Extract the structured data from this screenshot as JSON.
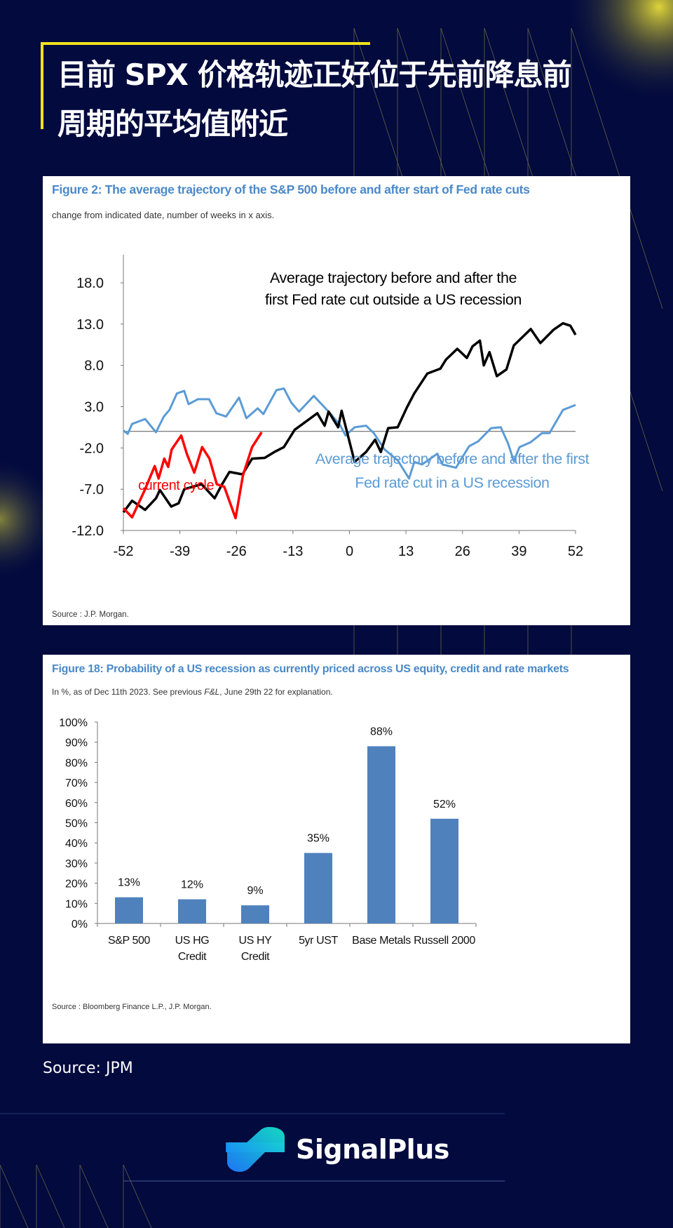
{
  "page": {
    "title_line1": "目前 SPX 价格轨迹正好位于先前降息前",
    "title_line2": "周期的平均值附近",
    "source": "Source: JPM",
    "brand": "SignalPlus",
    "colors": {
      "background": "#020a3e",
      "accent_yellow": "#f2e21c",
      "figure_title_blue": "#4a89c8"
    },
    "icons": [
      "signalplus-logo-icon"
    ]
  },
  "chart_data": [
    {
      "type": "line",
      "title": "Figure 2: The average trajectory of the S&P 500 before and after start of Fed rate cuts",
      "subtitle": "change from indicated date, number of weeks in x axis.",
      "source": "Source : J.P. Morgan.",
      "xlim": [
        -52,
        52
      ],
      "ylim": [
        -12,
        18
      ],
      "xticks": [
        "-52",
        "-39",
        "-26",
        "-13",
        "0",
        "13",
        "26",
        "39",
        "52"
      ],
      "xtick_values": [
        -52,
        -39,
        -26,
        -13,
        0,
        13,
        26,
        39,
        52
      ],
      "yticks": [
        "18.0",
        "13.0",
        "8.0",
        "3.0",
        "-2.0",
        "-7.0",
        "-12.0"
      ],
      "ytick_values": [
        18,
        13,
        8,
        3,
        -2,
        -7,
        -12
      ],
      "grid": false,
      "zero_line": true,
      "series": [
        {
          "name": "Average trajectory before and after the first Fed rate cut outside a US recession",
          "label_lines": [
            "Average trajectory before and after the",
            "first Fed rate cut outside a US recession"
          ],
          "color": "#000000",
          "points": [
            [
              -52,
              -9.8
            ],
            [
              -50,
              -8.4
            ],
            [
              -47,
              -9.5
            ],
            [
              -44.5,
              -8.1
            ],
            [
              -43.6,
              -7.1
            ],
            [
              -41,
              -9.1
            ],
            [
              -39.3,
              -8.7
            ],
            [
              -38,
              -7
            ],
            [
              -36,
              -6.7
            ],
            [
              -34,
              -6.4
            ],
            [
              -31,
              -8.1
            ],
            [
              -29.3,
              -6.4
            ],
            [
              -27.6,
              -4.9
            ],
            [
              -24.6,
              -5.2
            ],
            [
              -22.4,
              -3.3
            ],
            [
              -19.5,
              -3.2
            ],
            [
              -17.3,
              -2.5
            ],
            [
              -15.1,
              -1.9
            ],
            [
              -12.6,
              0.2
            ],
            [
              -10,
              1.2
            ],
            [
              -7.4,
              2.2
            ],
            [
              -5.7,
              0.7
            ],
            [
              -4.8,
              2.4
            ],
            [
              -2.6,
              0.5
            ],
            [
              -1.8,
              2.5
            ],
            [
              1.2,
              -3.7
            ],
            [
              3.8,
              -2.5
            ],
            [
              5.9,
              -1.0
            ],
            [
              7.2,
              -2.5
            ],
            [
              8.9,
              0.4
            ],
            [
              11.1,
              0.5
            ],
            [
              13.2,
              2.9
            ],
            [
              14.9,
              4.6
            ],
            [
              17.9,
              7.0
            ],
            [
              20.9,
              7.6
            ],
            [
              22.2,
              8.7
            ],
            [
              24.8,
              10.0
            ],
            [
              27,
              8.9
            ],
            [
              28.3,
              10.3
            ],
            [
              30,
              11
            ],
            [
              30.9,
              8
            ],
            [
              32.2,
              9.6
            ],
            [
              33.9,
              6.7
            ],
            [
              36.1,
              7.5
            ],
            [
              37.8,
              10.4
            ],
            [
              41.7,
              12.4
            ],
            [
              43.9,
              10.7
            ],
            [
              46.9,
              12.3
            ],
            [
              49.1,
              13.1
            ],
            [
              50.8,
              12.8
            ],
            [
              52,
              11.7
            ]
          ]
        },
        {
          "name": "Average trajectory before and after the first Fed rate cut in a US recession",
          "label_lines": [
            "Average trajectory before and after the first",
            "Fed rate cut in a US recession"
          ],
          "color": "#5b9bd5",
          "points": [
            [
              -52,
              0.1
            ],
            [
              -51,
              -0.3
            ],
            [
              -50,
              0.9
            ],
            [
              -47,
              1.5
            ],
            [
              -44.5,
              -0.1
            ],
            [
              -42.7,
              1.8
            ],
            [
              -41.4,
              2.6
            ],
            [
              -39.7,
              4.6
            ],
            [
              -38,
              4.9
            ],
            [
              -37,
              3.3
            ],
            [
              -34.9,
              3.9
            ],
            [
              -32.3,
              3.9
            ],
            [
              -30.6,
              2.2
            ],
            [
              -28.4,
              1.8
            ],
            [
              -25.4,
              4.1
            ],
            [
              -23.7,
              1.6
            ],
            [
              -21.1,
              2.8
            ],
            [
              -19.8,
              2.1
            ],
            [
              -16.8,
              5.0
            ],
            [
              -15.1,
              5.2
            ],
            [
              -13.4,
              3.5
            ],
            [
              -11.6,
              2.4
            ],
            [
              -8.2,
              4.3
            ],
            [
              -4.8,
              2.4
            ],
            [
              -2.2,
              0.8
            ],
            [
              -0.9,
              -0.5
            ],
            [
              1.2,
              0.5
            ],
            [
              3.8,
              0.7
            ],
            [
              5.6,
              -0.2
            ],
            [
              8.1,
              -2.2
            ],
            [
              11.1,
              -3.5
            ],
            [
              13.7,
              -5.7
            ],
            [
              14.9,
              -3.7
            ],
            [
              16.7,
              -4.0
            ],
            [
              20.2,
              -2.7
            ],
            [
              21.4,
              -4.0
            ],
            [
              24.5,
              -4.4
            ],
            [
              27.5,
              -1.8
            ],
            [
              29.6,
              -1.2
            ],
            [
              32.6,
              0.4
            ],
            [
              34.8,
              0.5
            ],
            [
              36.5,
              -1.5
            ],
            [
              37.8,
              -3.6
            ],
            [
              39.1,
              -1.9
            ],
            [
              41.7,
              -1.3
            ],
            [
              44.3,
              -0.2
            ],
            [
              46,
              -0.2
            ],
            [
              49.1,
              2.6
            ],
            [
              52,
              3.2
            ]
          ]
        },
        {
          "name": "current cycle",
          "label_lines": [
            "current cycle"
          ],
          "color": "#ff0000",
          "points": [
            [
              -52,
              -9.3
            ],
            [
              -50,
              -10.4
            ],
            [
              -47,
              -7.0
            ],
            [
              -44.8,
              -4.2
            ],
            [
              -43.9,
              -5.7
            ],
            [
              -42.6,
              -3.3
            ],
            [
              -41.7,
              -4.3
            ],
            [
              -40.9,
              -2.2
            ],
            [
              -38.7,
              -0.5
            ],
            [
              -37.4,
              -2.7
            ],
            [
              -35.7,
              -5.0
            ],
            [
              -33.9,
              -1.9
            ],
            [
              -32.2,
              -3.3
            ],
            [
              -30.5,
              -6.4
            ],
            [
              -28.8,
              -6.7
            ],
            [
              -26.2,
              -10.5
            ],
            [
              -24.5,
              -5.3
            ],
            [
              -22.4,
              -1.9
            ],
            [
              -20.2,
              -0.1
            ]
          ]
        }
      ]
    },
    {
      "type": "bar",
      "title": "Figure 18: Probability of a US recession as currently priced across US equity, credit and rate markets",
      "subtitle_pre": "In %, as of Dec 11th 2023. See previous ",
      "subtitle_italic": "F&L",
      "subtitle_post": ", June 29th 22 for explanation.",
      "source": "Source : Bloomberg Finance L.P., J.P. Morgan.",
      "categories": [
        [
          "S&P 500"
        ],
        [
          "US HG",
          "Credit"
        ],
        [
          "US HY",
          "Credit"
        ],
        [
          "5yr UST"
        ],
        [
          "Base Metals"
        ],
        [
          "Russell 2000"
        ]
      ],
      "values": [
        13,
        12,
        9,
        35,
        88,
        52
      ],
      "data_labels": [
        "13%",
        "12%",
        "9%",
        "35%",
        "88%",
        "52%"
      ],
      "ylim": [
        0,
        100
      ],
      "yticks": [
        "0%",
        "10%",
        "20%",
        "30%",
        "40%",
        "50%",
        "60%",
        "70%",
        "80%",
        "90%",
        "100%"
      ],
      "ytick_values": [
        0,
        10,
        20,
        30,
        40,
        50,
        60,
        70,
        80,
        90,
        100
      ],
      "bar_color": "#4f81bd",
      "grid": false
    }
  ]
}
